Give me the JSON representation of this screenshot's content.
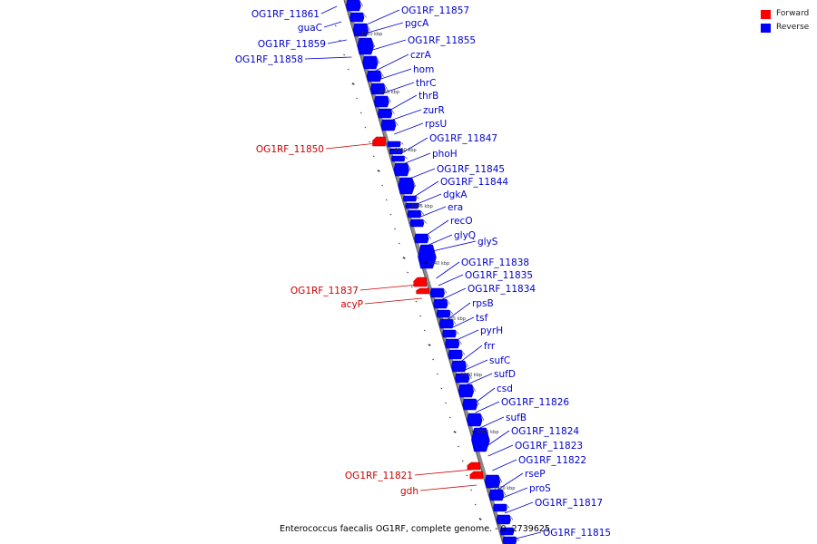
{
  "legend": {
    "forward_label": "Forward",
    "reverse_label": "Reverse",
    "forward_color": "#ff0000",
    "reverse_color": "#0000ff"
  },
  "caption": "Enterococcus faecalis OG1RF, complete genome. - 0..2739625",
  "ticks": [
    "1960 kbp",
    "1955 kbp",
    "1950 kbp",
    "1945 kbp",
    "1940 kbp",
    "1935 kbp",
    "1930 kbp",
    "1925 kbp",
    "1920 kbp"
  ],
  "forward_genes": [
    "OG1RF_11850",
    "OG1RF_11837",
    "acyP",
    "OG1RF_11821",
    "gdh"
  ],
  "reverse_genes_left": [
    "OG1RF_11861",
    "guaC",
    "OG1RF_11859",
    "OG1RF_11858"
  ],
  "reverse_genes": [
    "OG1RF_11857",
    "pgcA",
    "OG1RF_11855",
    "czrA",
    "hom",
    "thrC",
    "thrB",
    "zurR",
    "rpsU",
    "OG1RF_11847",
    "phoH",
    "OG1RF_11845",
    "OG1RF_11844",
    "dgkA",
    "era",
    "recO",
    "glyQ",
    "glyS",
    "OG1RF_11838",
    "OG1RF_11835",
    "OG1RF_11834",
    "rpsB",
    "tsf",
    "pyrH",
    "frr",
    "sufC",
    "sufD",
    "csd",
    "OG1RF_11826",
    "sufB",
    "OG1RF_11824",
    "OG1RF_11823",
    "OG1RF_11822",
    "rseP",
    "proS",
    "OG1RF_11817",
    "OG1RF_11815"
  ]
}
